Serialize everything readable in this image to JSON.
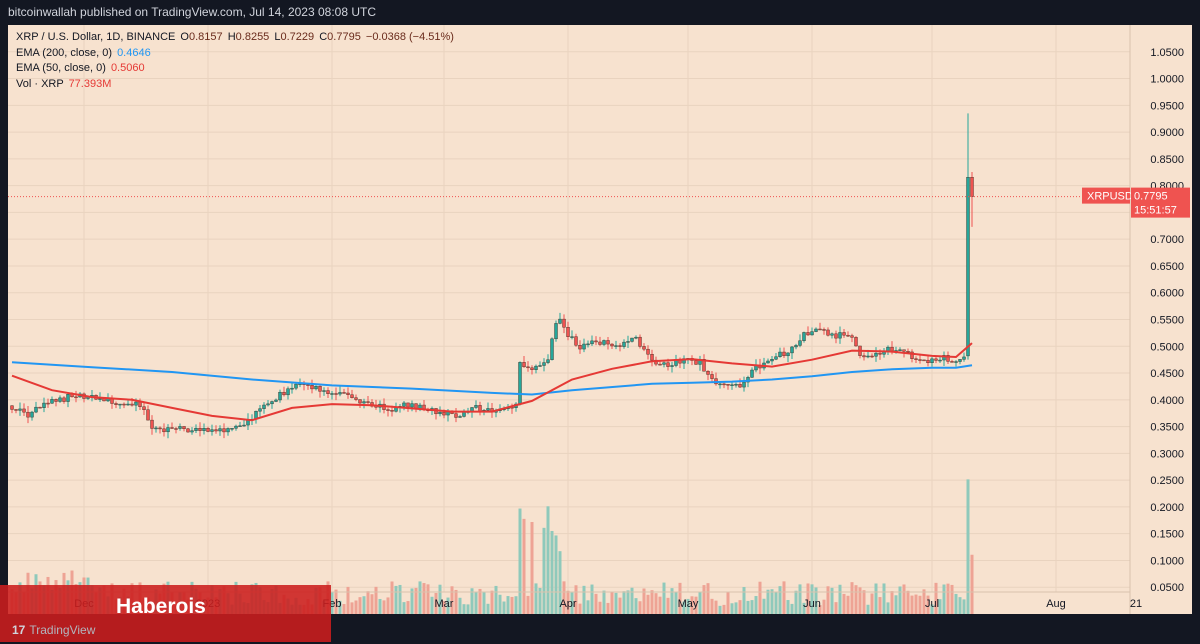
{
  "header": {
    "published": "bitcoinwallah published on TradingView.com, Jul 14, 2023 08:08 UTC"
  },
  "legend": {
    "symbol": "XRP / U.S. Dollar, 1D, BINANCE",
    "open_label": "O",
    "open": "0.8157",
    "high_label": "H",
    "high": "0.8255",
    "low_label": "L",
    "low": "0.7229",
    "close_label": "C",
    "close": "0.7795",
    "change": "−0.0368 (−4.51%)",
    "ema200_label": "EMA (200, close, 0)",
    "ema200_value": "0.4646",
    "ema50_label": "EMA (50, close, 0)",
    "ema50_value": "0.5060",
    "vol_label": "Vol · XRP",
    "vol_value": "77.393M"
  },
  "price_tag": {
    "symbol": "XRPUSD",
    "price": "0.7795",
    "countdown": "15:51:57"
  },
  "banner": {
    "text": "Haberois"
  },
  "footer": {
    "brand_mark": "17",
    "brand": "TradingView"
  },
  "colors": {
    "up": "#26a69a",
    "down": "#ef5350",
    "ema200": "#2196f3",
    "ema50": "#e53935",
    "background": "#f7e2cf"
  },
  "chart_data": {
    "type": "candlestick",
    "ylim": [
      0.0,
      1.1
    ],
    "yticks": [
      "0.0500",
      "0.1000",
      "0.1500",
      "0.2000",
      "0.2500",
      "0.3000",
      "0.3500",
      "0.4000",
      "0.4500",
      "0.5000",
      "0.5500",
      "0.6000",
      "0.6500",
      "0.7000",
      "0.7500",
      "0.8000",
      "0.8500",
      "0.9000",
      "0.9500",
      "1.0000",
      "1.0500"
    ],
    "xticks": [
      {
        "label": "Dec",
        "day": 18
      },
      {
        "label": "2023",
        "day": 49
      },
      {
        "label": "Feb",
        "day": 80
      },
      {
        "label": "Mar",
        "day": 108
      },
      {
        "label": "Apr",
        "day": 139
      },
      {
        "label": "May",
        "day": 169
      },
      {
        "label": "Jun",
        "day": 200
      },
      {
        "label": "Jul",
        "day": 230
      },
      {
        "label": "Aug",
        "day": 261
      },
      {
        "label": "21",
        "day": 281
      }
    ],
    "last_day": 240,
    "anchors": [
      [
        0,
        0.385
      ],
      [
        4,
        0.372
      ],
      [
        8,
        0.39
      ],
      [
        12,
        0.4
      ],
      [
        16,
        0.41
      ],
      [
        20,
        0.404
      ],
      [
        24,
        0.397
      ],
      [
        28,
        0.392
      ],
      [
        32,
        0.39
      ],
      [
        35,
        0.347
      ],
      [
        40,
        0.345
      ],
      [
        45,
        0.345
      ],
      [
        50,
        0.345
      ],
      [
        54,
        0.342
      ],
      [
        58,
        0.352
      ],
      [
        62,
        0.382
      ],
      [
        66,
        0.403
      ],
      [
        70,
        0.425
      ],
      [
        74,
        0.425
      ],
      [
        78,
        0.418
      ],
      [
        82,
        0.412
      ],
      [
        86,
        0.402
      ],
      [
        90,
        0.392
      ],
      [
        94,
        0.38
      ],
      [
        98,
        0.392
      ],
      [
        101,
        0.388
      ],
      [
        104,
        0.382
      ],
      [
        108,
        0.376
      ],
      [
        112,
        0.37
      ],
      [
        116,
        0.385
      ],
      [
        120,
        0.377
      ],
      [
        124,
        0.382
      ],
      [
        126,
        0.392
      ],
      [
        127,
        0.47
      ],
      [
        128,
        0.46
      ],
      [
        130,
        0.455
      ],
      [
        132,
        0.47
      ],
      [
        134,
        0.478
      ],
      [
        136,
        0.54
      ],
      [
        137,
        0.555
      ],
      [
        139,
        0.52
      ],
      [
        142,
        0.5
      ],
      [
        144,
        0.505
      ],
      [
        148,
        0.505
      ],
      [
        152,
        0.5
      ],
      [
        156,
        0.52
      ],
      [
        158,
        0.49
      ],
      [
        160,
        0.47
      ],
      [
        164,
        0.465
      ],
      [
        168,
        0.475
      ],
      [
        172,
        0.47
      ],
      [
        174,
        0.445
      ],
      [
        177,
        0.425
      ],
      [
        180,
        0.425
      ],
      [
        183,
        0.43
      ],
      [
        186,
        0.46
      ],
      [
        190,
        0.48
      ],
      [
        194,
        0.49
      ],
      [
        198,
        0.525
      ],
      [
        202,
        0.53
      ],
      [
        206,
        0.52
      ],
      [
        210,
        0.52
      ],
      [
        212,
        0.48
      ],
      [
        216,
        0.488
      ],
      [
        220,
        0.497
      ],
      [
        224,
        0.485
      ],
      [
        228,
        0.47
      ],
      [
        232,
        0.48
      ],
      [
        236,
        0.475
      ],
      [
        238,
        0.482
      ],
      [
        239,
        0.8157
      ],
      [
        240,
        0.7795
      ]
    ],
    "specials": [
      {
        "day": 239,
        "open": 0.482,
        "high": 0.935,
        "low": 0.475,
        "close": 0.8157
      },
      {
        "day": 240,
        "open": 0.8157,
        "high": 0.8255,
        "low": 0.7229,
        "close": 0.7795
      }
    ],
    "ema50": [
      [
        0,
        0.445
      ],
      [
        10,
        0.418
      ],
      [
        20,
        0.405
      ],
      [
        30,
        0.4
      ],
      [
        40,
        0.385
      ],
      [
        50,
        0.37
      ],
      [
        60,
        0.362
      ],
      [
        70,
        0.385
      ],
      [
        80,
        0.392
      ],
      [
        90,
        0.39
      ],
      [
        100,
        0.384
      ],
      [
        110,
        0.378
      ],
      [
        120,
        0.378
      ],
      [
        130,
        0.398
      ],
      [
        140,
        0.438
      ],
      [
        150,
        0.458
      ],
      [
        160,
        0.472
      ],
      [
        170,
        0.476
      ],
      [
        180,
        0.468
      ],
      [
        190,
        0.462
      ],
      [
        200,
        0.475
      ],
      [
        210,
        0.492
      ],
      [
        220,
        0.49
      ],
      [
        230,
        0.482
      ],
      [
        236,
        0.48
      ],
      [
        240,
        0.506
      ]
    ],
    "ema200": [
      [
        0,
        0.47
      ],
      [
        20,
        0.461
      ],
      [
        40,
        0.452
      ],
      [
        60,
        0.438
      ],
      [
        80,
        0.427
      ],
      [
        100,
        0.421
      ],
      [
        120,
        0.413
      ],
      [
        130,
        0.41
      ],
      [
        140,
        0.418
      ],
      [
        160,
        0.43
      ],
      [
        170,
        0.432
      ],
      [
        180,
        0.434
      ],
      [
        190,
        0.438
      ],
      [
        200,
        0.444
      ],
      [
        210,
        0.452
      ],
      [
        220,
        0.457
      ],
      [
        230,
        0.46
      ],
      [
        236,
        0.46
      ],
      [
        240,
        0.4646
      ]
    ],
    "volume_scale_max": 0.3,
    "volume_spikes": [
      {
        "day": 127,
        "value": 0.235
      },
      {
        "day": 128,
        "value": 0.212
      },
      {
        "day": 130,
        "value": 0.205
      },
      {
        "day": 133,
        "value": 0.192
      },
      {
        "day": 134,
        "value": 0.24
      },
      {
        "day": 135,
        "value": 0.185
      },
      {
        "day": 136,
        "value": 0.175
      },
      {
        "day": 137,
        "value": 0.14
      },
      {
        "day": 239,
        "value": 0.3
      },
      {
        "day": 240,
        "value": 0.132
      }
    ]
  }
}
